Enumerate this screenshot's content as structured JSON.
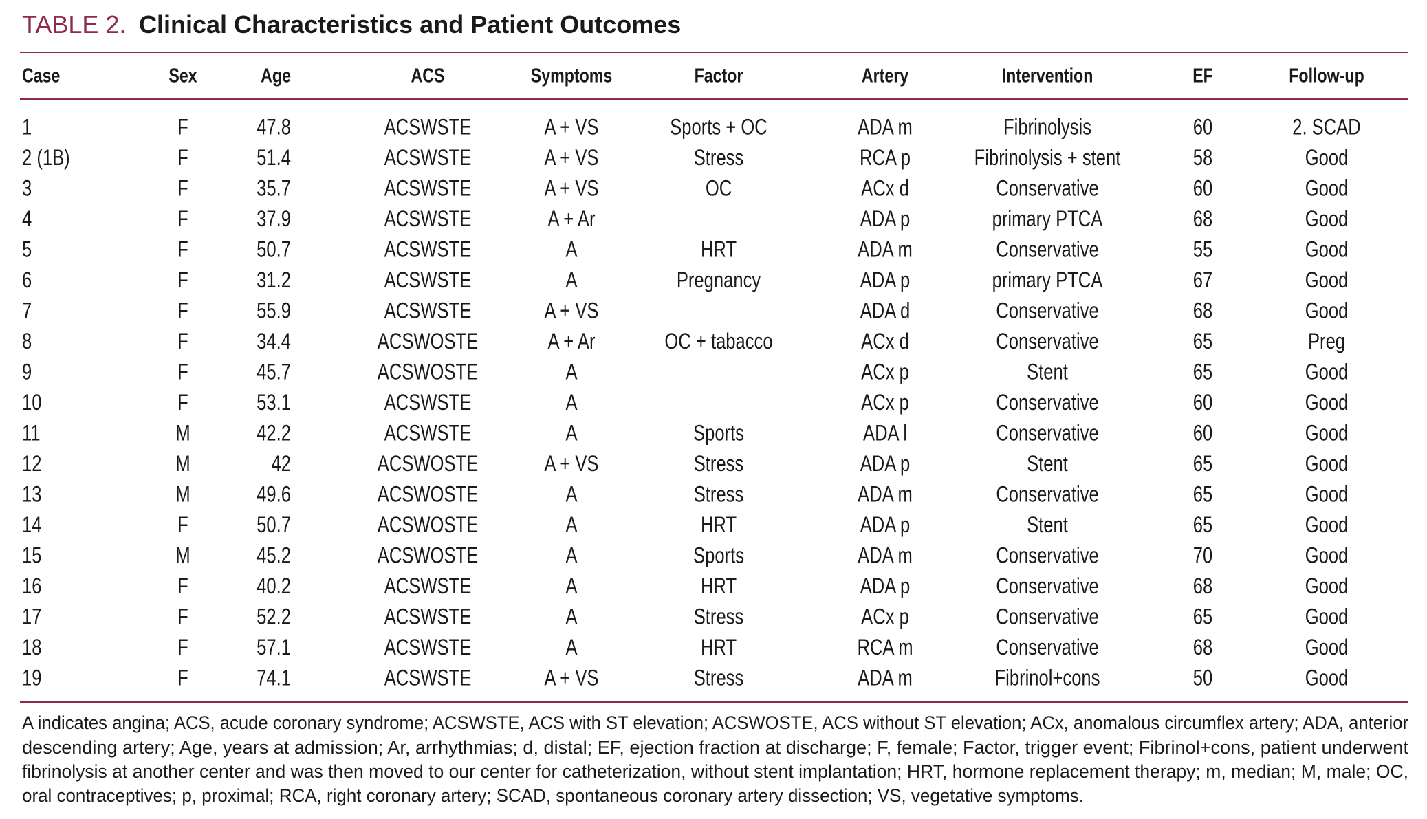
{
  "title": {
    "label": "TABLE 2.",
    "text": "Clinical Characteristics and Patient Outcomes"
  },
  "table": {
    "header": [
      "Case",
      "Sex",
      "Age",
      "ACS",
      "Symptoms",
      "Factor",
      "Artery",
      "Intervention",
      "EF",
      "Follow-up"
    ],
    "rows": [
      [
        "1",
        "F",
        "47.8",
        "ACSWSTE",
        "A + VS",
        "Sports + OC",
        "ADA m",
        "Fibrinolysis",
        "60",
        "2. SCAD"
      ],
      [
        "2 (1B)",
        "F",
        "51.4",
        "ACSWSTE",
        "A + VS",
        "Stress",
        "RCA p",
        "Fibrinolysis + stent",
        "58",
        "Good"
      ],
      [
        "3",
        "F",
        "35.7",
        "ACSWSTE",
        "A + VS",
        "OC",
        "ACx d",
        "Conservative",
        "60",
        "Good"
      ],
      [
        "4",
        "F",
        "37.9",
        "ACSWSTE",
        "A + Ar",
        null,
        "ADA p",
        "primary PTCA",
        "68",
        "Good"
      ],
      [
        "5",
        "F",
        "50.7",
        "ACSWSTE",
        "A",
        "HRT",
        "ADA m",
        "Conservative",
        "55",
        "Good"
      ],
      [
        "6",
        "F",
        "31.2",
        "ACSWSTE",
        "A",
        "Pregnancy",
        "ADA p",
        "primary PTCA",
        "67",
        "Good"
      ],
      [
        "7",
        "F",
        "55.9",
        "ACSWSTE",
        "A + VS",
        null,
        "ADA d",
        "Conservative",
        "68",
        "Good"
      ],
      [
        "8",
        "F",
        "34.4",
        "ACSWOSTE",
        "A + Ar",
        "OC + tabacco",
        "ACx d",
        "Conservative",
        "65",
        "Preg"
      ],
      [
        "9",
        "F",
        "45.7",
        "ACSWOSTE",
        "A",
        null,
        "ACx p",
        "Stent",
        "65",
        "Good"
      ],
      [
        "10",
        "F",
        "53.1",
        "ACSWSTE",
        "A",
        null,
        "ACx p",
        "Conservative",
        "60",
        "Good"
      ],
      [
        "11",
        "M",
        "42.2",
        "ACSWSTE",
        "A",
        "Sports",
        "ADA l",
        "Conservative",
        "60",
        "Good"
      ],
      [
        "12",
        "M",
        "42",
        "ACSWOSTE",
        "A + VS",
        "Stress",
        "ADA p",
        "Stent",
        "65",
        "Good"
      ],
      [
        "13",
        "M",
        "49.6",
        "ACSWOSTE",
        "A",
        "Stress",
        "ADA m",
        "Conservative",
        "65",
        "Good"
      ],
      [
        "14",
        "F",
        "50.7",
        "ACSWOSTE",
        "A",
        "HRT",
        "ADA p",
        "Stent",
        "65",
        "Good"
      ],
      [
        "15",
        "M",
        "45.2",
        "ACSWOSTE",
        "A",
        "Sports",
        "ADA m",
        "Conservative",
        "70",
        "Good"
      ],
      [
        "16",
        "F",
        "40.2",
        "ACSWSTE",
        "A",
        "HRT",
        "ADA p",
        "Conservative",
        "68",
        "Good"
      ],
      [
        "17",
        "F",
        "52.2",
        "ACSWSTE",
        "A",
        "Stress",
        "ACx p",
        "Conservative",
        "65",
        "Good"
      ],
      [
        "18",
        "F",
        "57.1",
        "ACSWSTE",
        "A",
        "HRT",
        "RCA m",
        "Conservative",
        "68",
        "Good"
      ],
      [
        "19",
        "F",
        "74.1",
        "ACSWSTE",
        "A + VS",
        "Stress",
        "ADA m",
        "Fibrinol+cons",
        "50",
        "Good"
      ]
    ]
  },
  "footnote": [
    "A indicates angina; ACS, acude coronary syndrome; ACSWSTE, ACS with ST elevation; ACSWOSTE, ACS without ST elevation; ACx, anomalous circumflex artery; ADA, anterior",
    "descending artery; Age, years at admission; Ar, arrhythmias; d, distal; EF, ejection fraction at discharge; F, female; Factor, trigger event; Fibrinol+cons, patient underwent",
    "fibrinolysis at another center and was then moved to our center for catheterization, without stent implantation; HRT, hormone replacement therapy; m, median; M, male; OC,",
    "oral contraceptives; p, proximal; RCA, right coronary artery; SCAD, spontaneous coronary artery dissection; VS, vegetative symptoms."
  ]
}
